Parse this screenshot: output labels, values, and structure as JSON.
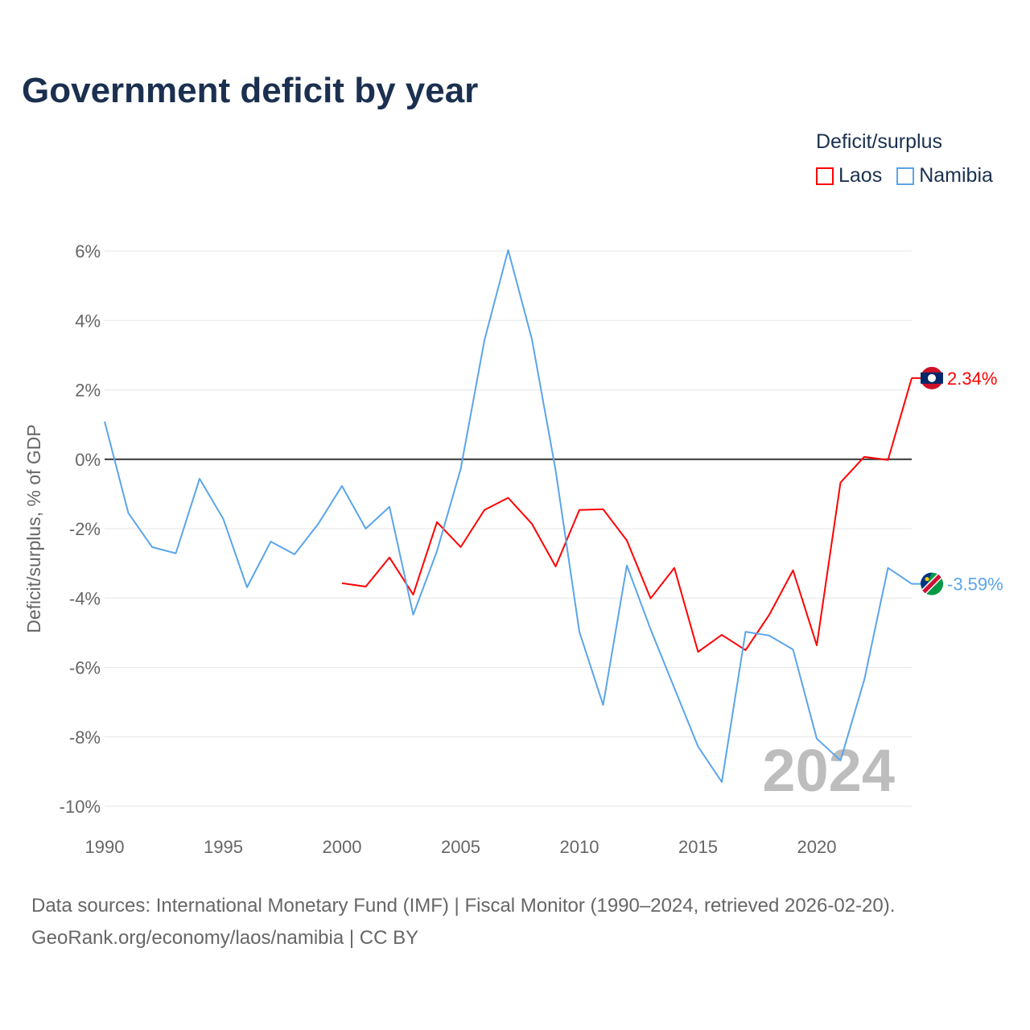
{
  "title": "Government deficit by year",
  "legend_title": "Deficit/surplus",
  "footer": {
    "line1": "Data sources: International Monetary Fund (IMF) | Fiscal Monitor (1990–2024, retrieved 2026-02-20).",
    "line2": "GeoRank.org/economy/laos/namibia | CC BY"
  },
  "watermark_year": "2024",
  "chart_data": {
    "type": "line",
    "title": "Government deficit by year",
    "xlabel": "",
    "ylabel": "Deficit/surplus, % of GDP",
    "xlim": [
      1990,
      2024
    ],
    "ylim": [
      -10,
      6
    ],
    "xticks": [
      1990,
      1995,
      2000,
      2005,
      2010,
      2015,
      2020
    ],
    "xtick_labels": [
      "1990",
      "1995",
      "2000",
      "2005",
      "2010",
      "2015",
      "2020"
    ],
    "yticks": [
      6,
      4,
      2,
      0,
      -2,
      -4,
      -6,
      -8,
      -10
    ],
    "ytick_labels": [
      "6%",
      "4%",
      "2%",
      "0%",
      "-2%",
      "-4%",
      "-6%",
      "-8%",
      "-10%"
    ],
    "grid": true,
    "legend_placement": "top-right",
    "series": [
      {
        "name": "Laos",
        "color": "#ff0000",
        "end_label": "2.34%",
        "x": [
          2000,
          2001,
          2002,
          2003,
          2004,
          2005,
          2006,
          2007,
          2008,
          2009,
          2010,
          2011,
          2012,
          2013,
          2014,
          2015,
          2016,
          2017,
          2018,
          2019,
          2020,
          2021,
          2022,
          2023,
          2024
        ],
        "values": [
          -3.57,
          -3.67,
          -2.83,
          -3.9,
          -1.81,
          -2.53,
          -1.46,
          -1.11,
          -1.86,
          -3.09,
          -1.46,
          -1.44,
          -2.34,
          -4.01,
          -3.13,
          -5.55,
          -5.06,
          -5.5,
          -4.48,
          -3.2,
          -5.36,
          -0.67,
          0.07,
          -0.02,
          2.34
        ]
      },
      {
        "name": "Namibia",
        "color": "#5aa5ea",
        "end_label": "-3.59%",
        "x": [
          1990,
          1991,
          1992,
          1993,
          1994,
          1995,
          1996,
          1997,
          1998,
          1999,
          2000,
          2001,
          2002,
          2003,
          2004,
          2005,
          2006,
          2007,
          2008,
          2009,
          2010,
          2011,
          2012,
          2013,
          2014,
          2015,
          2016,
          2017,
          2018,
          2019,
          2020,
          2021,
          2022,
          2023,
          2024
        ],
        "values": [
          1.09,
          -1.55,
          -2.53,
          -2.71,
          -0.56,
          -1.72,
          -3.69,
          -2.37,
          -2.74,
          -1.86,
          -0.77,
          -2.0,
          -1.37,
          -4.48,
          -2.65,
          -0.28,
          3.43,
          6.03,
          3.46,
          -0.32,
          -4.97,
          -7.08,
          -3.06,
          -4.9,
          -6.59,
          -8.28,
          -9.3,
          -4.97,
          -5.08,
          -5.48,
          -8.05,
          -8.68,
          -6.36,
          -3.13,
          -3.59
        ]
      }
    ]
  }
}
